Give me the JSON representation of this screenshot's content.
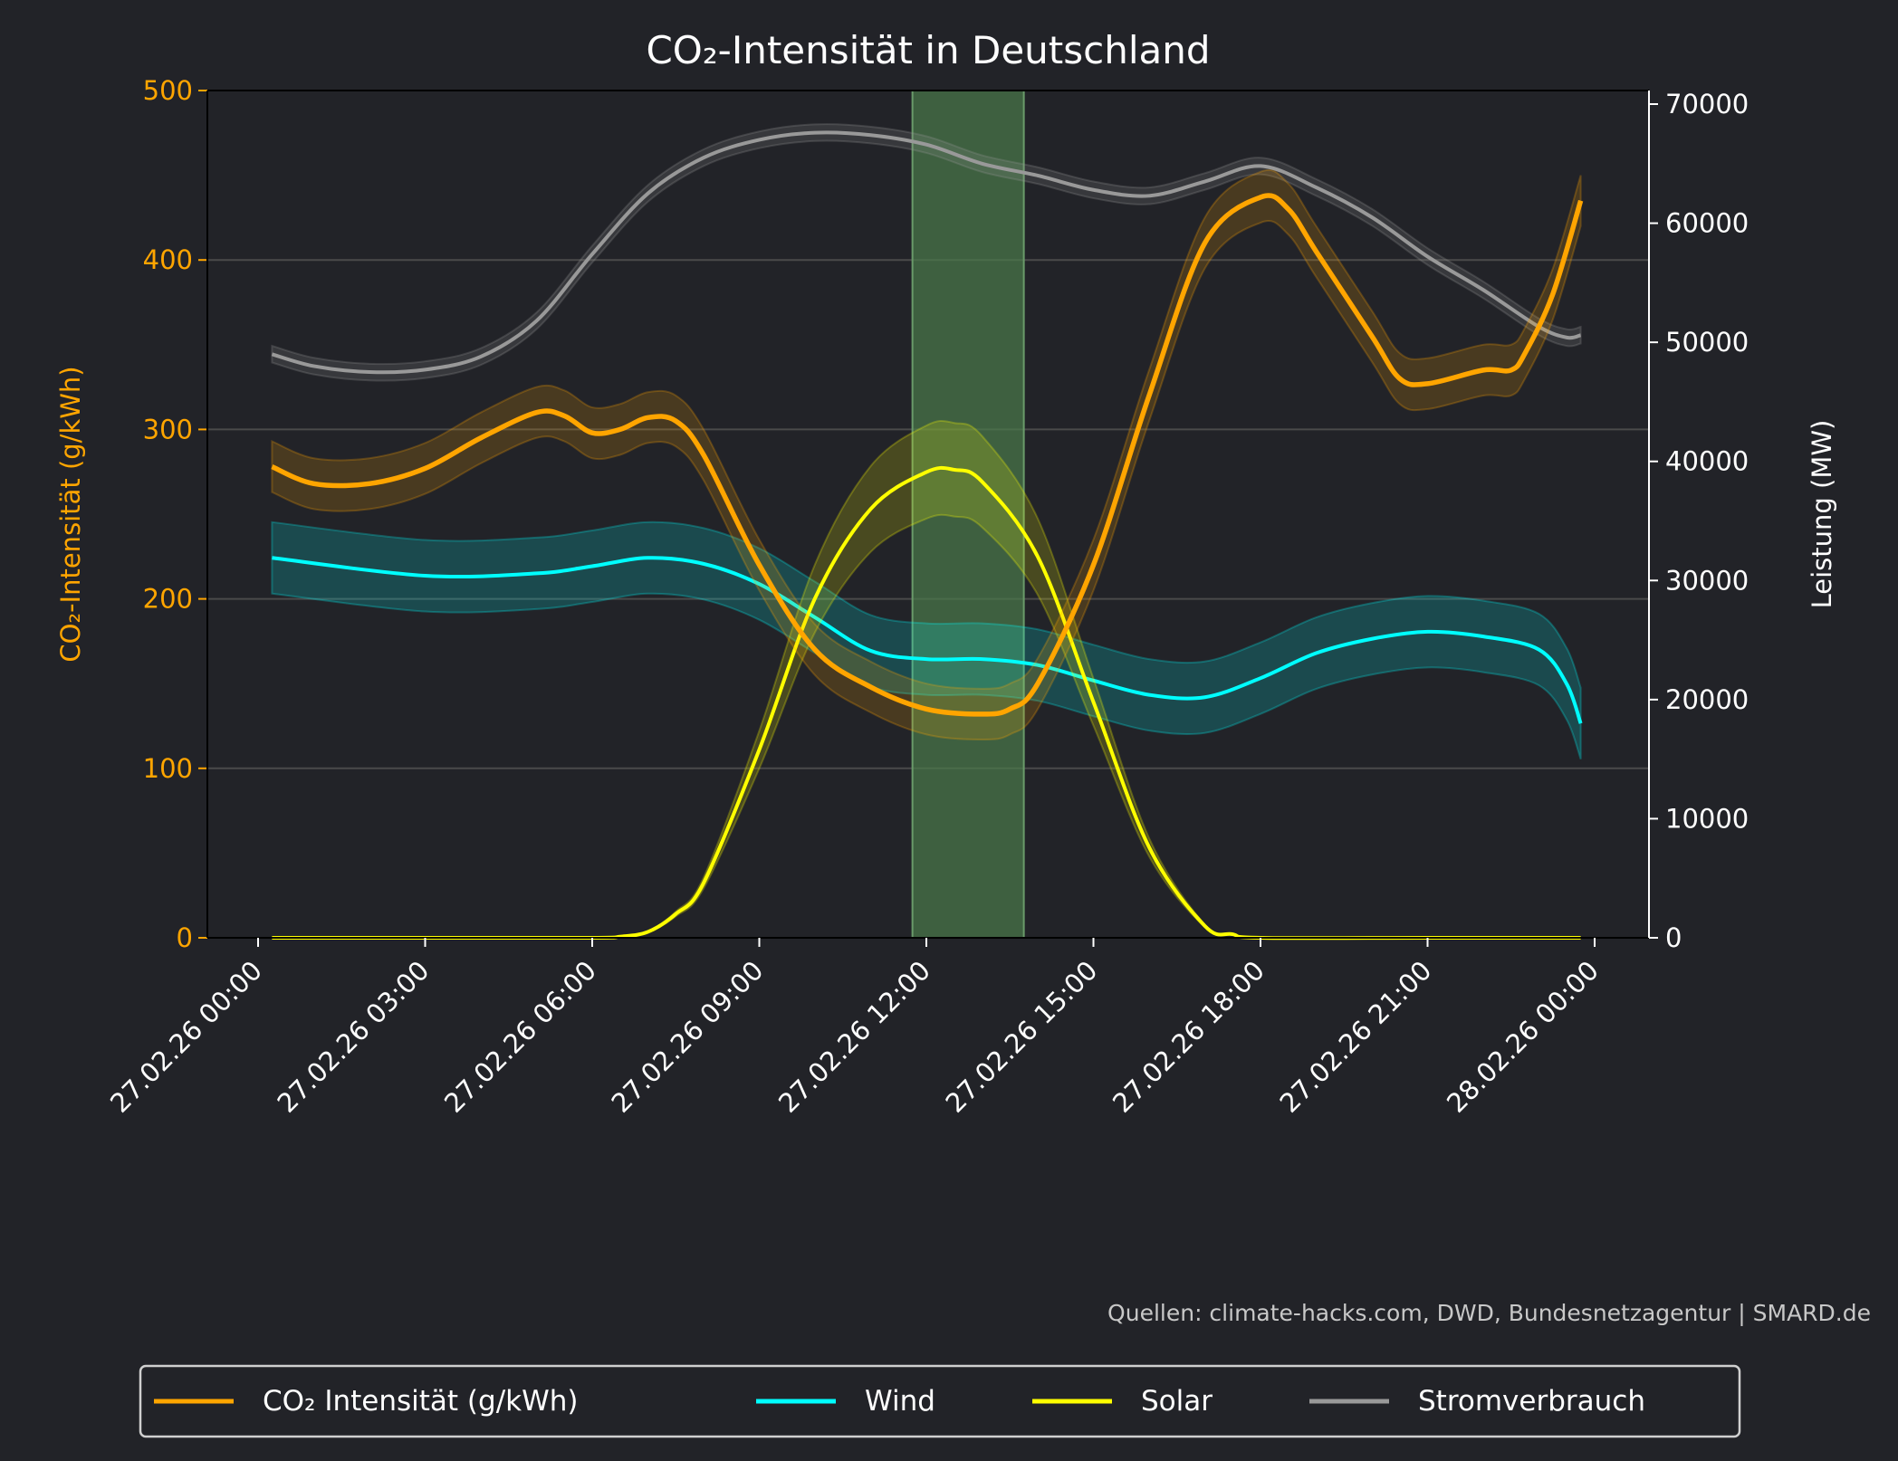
{
  "chart_data": {
    "type": "line",
    "title": "CO₂-Intensität in Deutschland",
    "ylabel_left": "CO₂-Intensität (g/kWh)",
    "ylabel_right": "Leistung (MW)",
    "ylim_left": [
      0,
      500
    ],
    "ylim_right": [
      0,
      70000
    ],
    "xlim_hours": [
      "27.02.26 00:00",
      "28.02.26 00:00"
    ],
    "x_tick_labels": [
      "27.02.26 00:00",
      "27.02.26 03:00",
      "27.02.26 06:00",
      "27.02.26 09:00",
      "27.02.26 12:00",
      "27.02.26 15:00",
      "27.02.26 18:00",
      "27.02.26 21:00",
      "28.02.26 00:00"
    ],
    "y_left_ticks": [
      "0",
      "100",
      "200",
      "300",
      "400",
      "500"
    ],
    "y_right_ticks": [
      "0",
      "10000",
      "20000",
      "30000",
      "40000",
      "50000",
      "60000",
      "70000"
    ],
    "grid": "horizontal",
    "highlight_span": {
      "start": "27.02.26 11:45",
      "end": "27.02.26 13:45",
      "color": "#4a7a4a"
    },
    "source": "Quellen: climate-hacks.com, DWD, Bundesnetzagentur | SMARD.de",
    "legend_position": "bottom",
    "series": [
      {
        "name": "CO₂ Intensität (g/kWh)",
        "axis": "left",
        "color": "#ffa500",
        "band": 15,
        "x": [
          "00:15",
          "01:00",
          "02:00",
          "03:00",
          "04:00",
          "05:00",
          "05:30",
          "06:00",
          "06:30",
          "07:00",
          "07:30",
          "08:00",
          "09:00",
          "10:00",
          "11:00",
          "12:00",
          "13:00",
          "13:30",
          "14:00",
          "15:00",
          "16:00",
          "17:00",
          "18:00",
          "18:30",
          "19:00",
          "20:00",
          "20:30",
          "21:00",
          "22:00",
          "22:30",
          "22:45",
          "23:15",
          "23:45"
        ],
        "values": [
          278,
          268,
          268,
          277,
          295,
          310,
          308,
          298,
          300,
          307,
          305,
          285,
          220,
          170,
          148,
          135,
          132,
          135,
          150,
          220,
          320,
          410,
          437,
          430,
          405,
          355,
          330,
          327,
          335,
          335,
          345,
          380,
          435
        ]
      },
      {
        "name": "Wind",
        "axis": "right",
        "color": "#00ffff",
        "band": 3000,
        "x": [
          "00:15",
          "03:00",
          "05:00",
          "06:00",
          "07:00",
          "08:00",
          "09:00",
          "10:00",
          "11:00",
          "12:00",
          "13:00",
          "14:00",
          "15:00",
          "16:00",
          "17:00",
          "18:00",
          "19:00",
          "20:00",
          "21:00",
          "22:00",
          "23:00",
          "23:30",
          "23:45"
        ],
        "values": [
          31900,
          30400,
          30600,
          31200,
          31900,
          31400,
          29700,
          26900,
          24100,
          23400,
          23400,
          22900,
          21600,
          20400,
          20200,
          21800,
          23900,
          25100,
          25700,
          25300,
          24200,
          21300,
          18000
        ]
      },
      {
        "name": "Solar",
        "axis": "right",
        "color": "#ffff00",
        "band": 0.1,
        "x": [
          "00:15",
          "03:00",
          "06:00",
          "06:30",
          "07:00",
          "07:30",
          "08:00",
          "09:00",
          "10:00",
          "11:00",
          "12:00",
          "12:30",
          "13:00",
          "14:00",
          "15:00",
          "16:00",
          "17:00",
          "17:30",
          "18:00",
          "21:00",
          "23:45"
        ],
        "values": [
          0,
          0,
          0,
          100,
          500,
          2000,
          4600,
          15800,
          28500,
          36000,
          39100,
          39300,
          38300,
          32000,
          19800,
          7600,
          1000,
          300,
          0,
          0,
          0
        ]
      },
      {
        "name": "Stromverbrauch",
        "axis": "right",
        "color": "#999999",
        "band": 700,
        "x": [
          "00:15",
          "01:00",
          "02:00",
          "03:00",
          "04:00",
          "05:00",
          "06:00",
          "07:00",
          "08:00",
          "09:00",
          "10:00",
          "11:00",
          "12:00",
          "13:00",
          "14:00",
          "15:00",
          "16:00",
          "17:00",
          "18:00",
          "19:00",
          "20:00",
          "21:00",
          "22:00",
          "23:00",
          "23:30",
          "23:45"
        ],
        "values": [
          49000,
          48000,
          47500,
          47700,
          48800,
          51800,
          57400,
          62500,
          65500,
          67000,
          67600,
          67400,
          66600,
          65000,
          64000,
          62800,
          62300,
          63500,
          64800,
          63000,
          60500,
          57200,
          54400,
          51300,
          50400,
          50600
        ]
      }
    ]
  }
}
